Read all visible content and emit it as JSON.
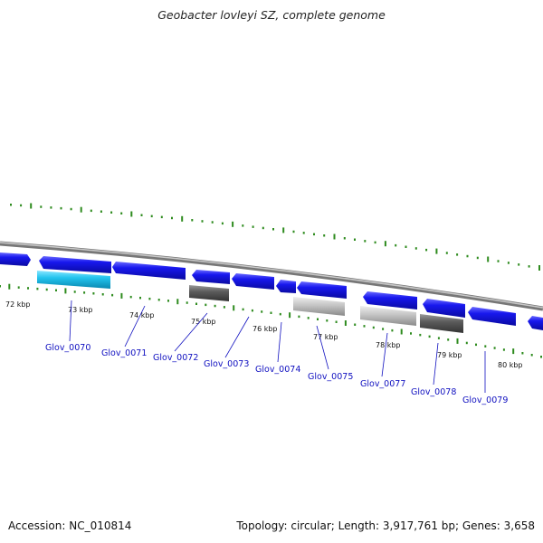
{
  "title": "Geobacter lovleyi SZ, complete genome",
  "footer": {
    "accession": "Accession: NC_010814",
    "stats": "Topology: circular; Length: 3,917,761 bp; Genes: 3,658"
  },
  "colors": {
    "gene_forward": "#1616e6",
    "gene_highlight": "#22c4ee",
    "gene_dark": "#5c5c5c",
    "gene_light": "#bdbdbd",
    "backbone": "#8a8a8a",
    "tick": "#2e8b1e",
    "label": "#1010c0"
  },
  "scale_labels": [
    "72 kbp",
    "73 kbp",
    "74 kbp",
    "75 kbp",
    "76 kbp",
    "77 kbp",
    "78 kbp",
    "79 kbp",
    "80 kbp"
  ],
  "gene_labels": [
    "Glov_0070",
    "Glov_0071",
    "Glov_0072",
    "Glov_0073",
    "Glov_0074",
    "Glov_0075",
    "Glov_0077",
    "Glov_0078",
    "Glov_0079"
  ]
}
